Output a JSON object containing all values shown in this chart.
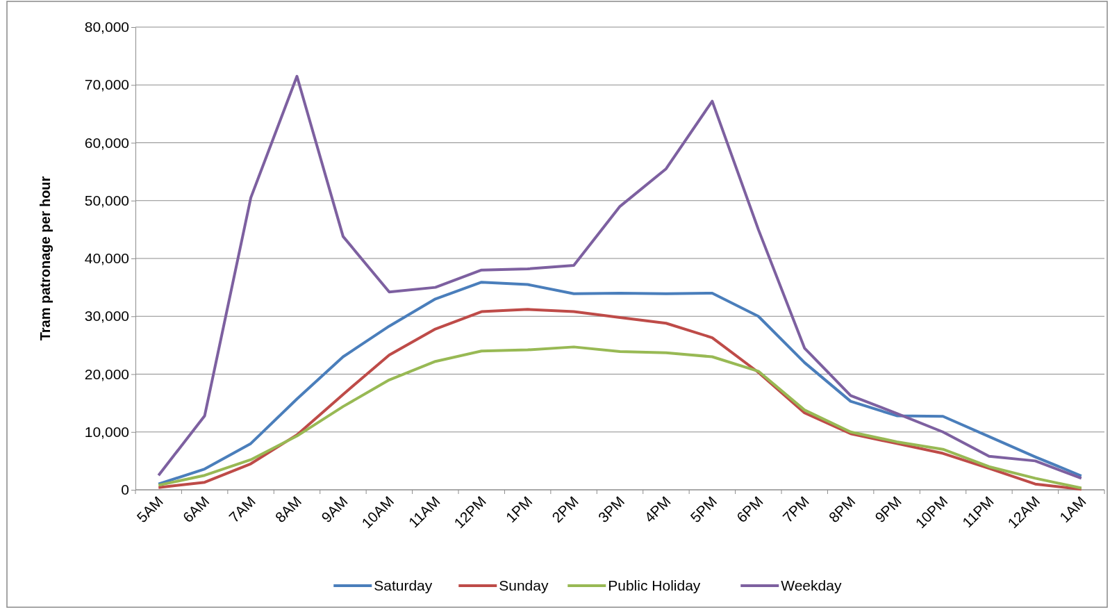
{
  "chart_data": {
    "type": "line",
    "ylabel": "Tram patronage per hour",
    "categories": [
      "5AM",
      "6AM",
      "7AM",
      "8AM",
      "9AM",
      "10AM",
      "11AM",
      "12PM",
      "1PM",
      "2PM",
      "3PM",
      "4PM",
      "5PM",
      "6PM",
      "7PM",
      "8PM",
      "9PM",
      "10PM",
      "11PM",
      "12AM",
      "1AM"
    ],
    "series": [
      {
        "name": "Saturday",
        "color": "#4a7ebb",
        "values": [
          1000,
          3600,
          8000,
          15700,
          23000,
          28300,
          33000,
          35900,
          35500,
          33900,
          34000,
          33900,
          34000,
          30000,
          22000,
          15300,
          12800,
          12700,
          9200,
          5700,
          2400
        ]
      },
      {
        "name": "Sunday",
        "color": "#be4b48",
        "values": [
          400,
          1300,
          4500,
          9500,
          16500,
          23300,
          27800,
          30800,
          31200,
          30800,
          29800,
          28800,
          26300,
          20300,
          13300,
          9700,
          8000,
          6300,
          3700,
          1000,
          100
        ]
      },
      {
        "name": "Public Holiday",
        "color": "#98b954",
        "values": [
          800,
          2500,
          5200,
          9300,
          14400,
          19000,
          22200,
          24000,
          24200,
          24700,
          23900,
          23700,
          23000,
          20500,
          13800,
          10000,
          8300,
          7000,
          4000,
          2000,
          300
        ]
      },
      {
        "name": "Weekday",
        "color": "#7d60a0",
        "values": [
          2500,
          12800,
          50500,
          71500,
          43800,
          34200,
          35000,
          38000,
          38200,
          38800,
          49000,
          55500,
          67200,
          45000,
          24500,
          16300,
          13200,
          10000,
          5800,
          5000,
          2000
        ]
      }
    ],
    "ylim": [
      0,
      80000
    ],
    "yticks": [
      0,
      {
        "value": 10000,
        "label": "10,000"
      },
      {
        "value": 20000,
        "label": "20,000"
      },
      {
        "value": 30000,
        "label": "30,000"
      },
      {
        "value": 40000,
        "label": "40,000"
      },
      {
        "value": 50000,
        "label": "50,000"
      },
      {
        "value": 60000,
        "label": "60,000"
      },
      {
        "value": 70000,
        "label": "70,000"
      },
      {
        "value": 80000,
        "label": "80,000"
      }
    ],
    "grid": "y",
    "legend": "bottom",
    "marker": "none",
    "line_style": "solid"
  }
}
